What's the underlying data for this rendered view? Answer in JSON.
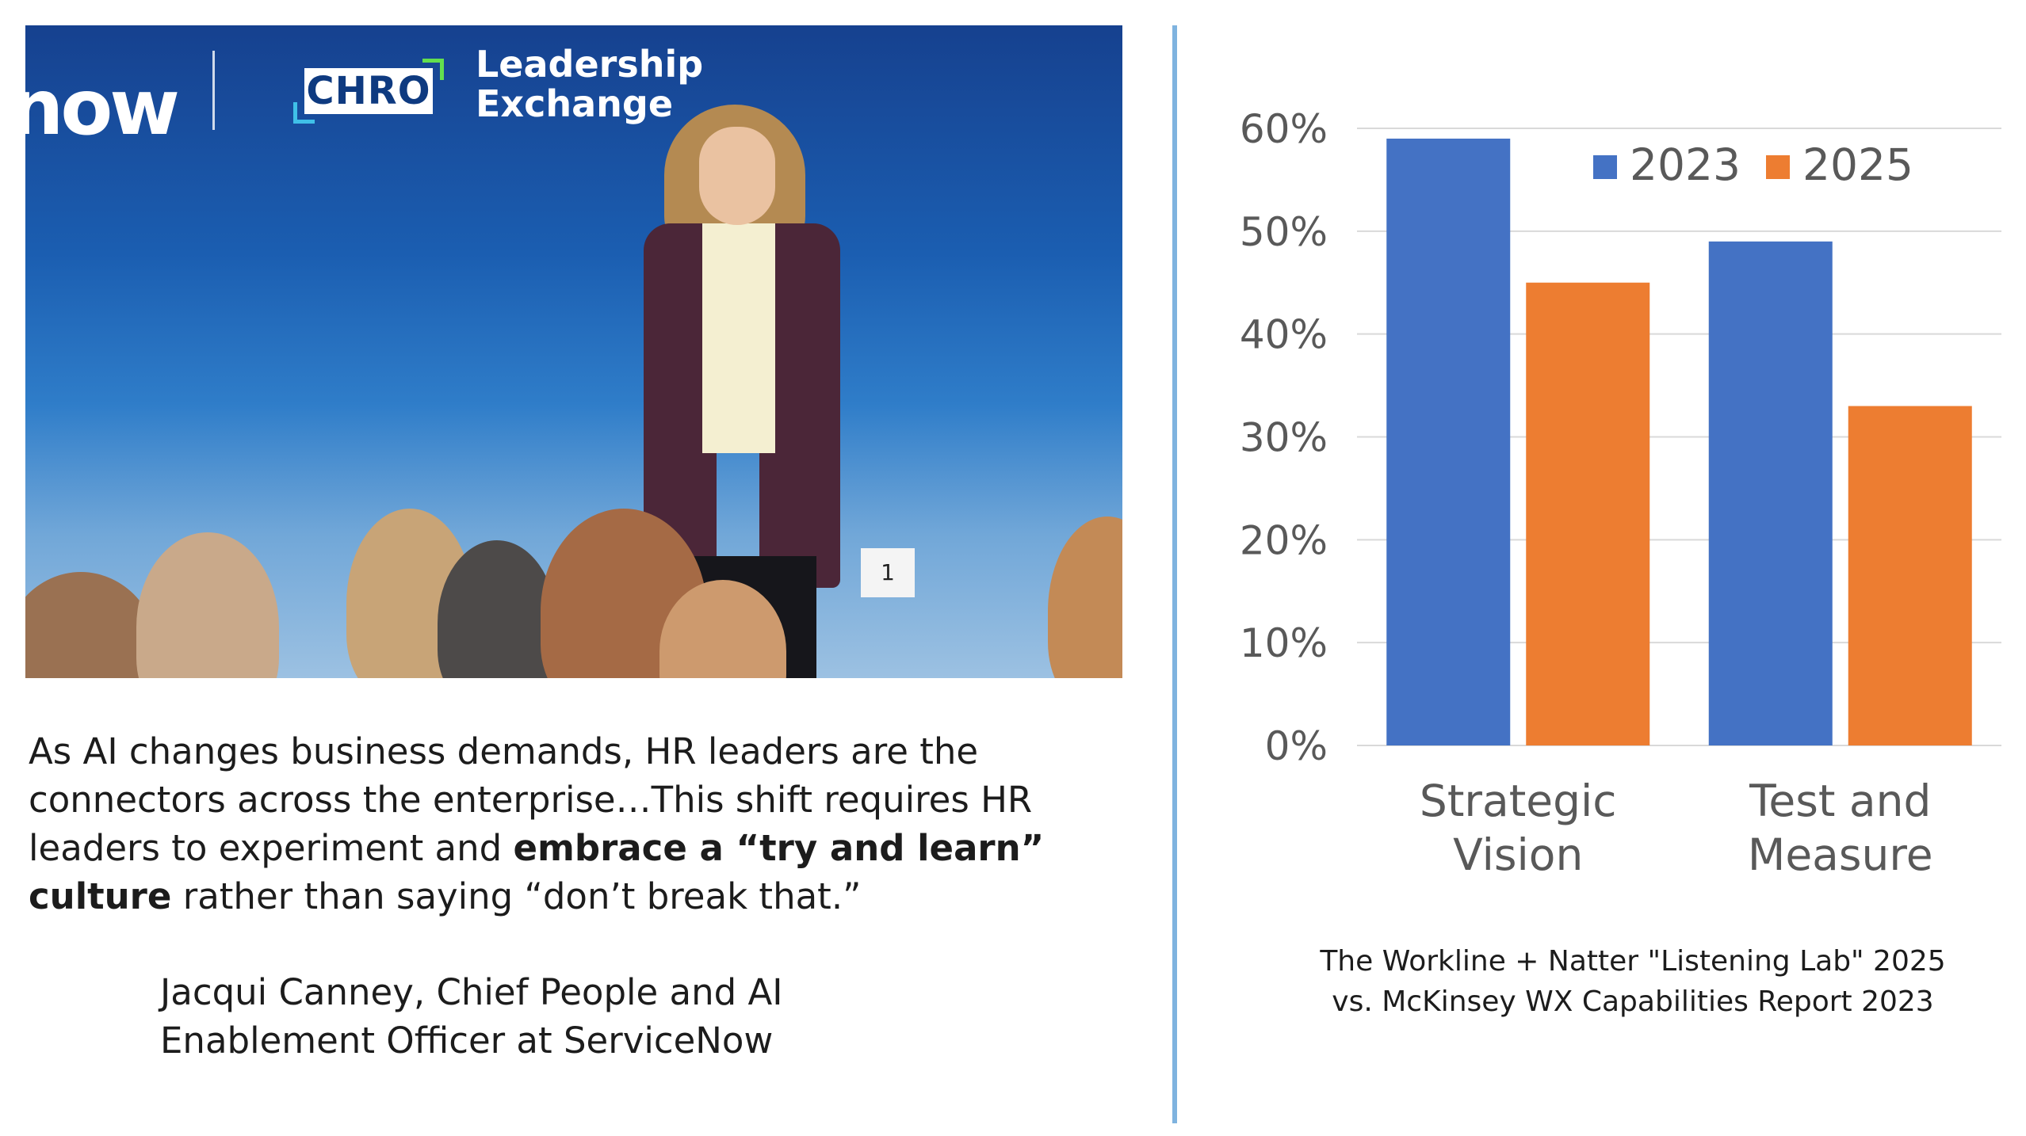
{
  "photo": {
    "logo_text": "now",
    "event_badge": "CHRO",
    "event_name_line1": "Leadership",
    "event_name_line2": "Exchange",
    "table_number": "1"
  },
  "quote": {
    "part1": "As AI changes business demands, HR leaders are the connectors across the enterprise…This shift requires HR leaders to experiment and ",
    "bold1": "embrace a “try and learn” culture",
    "part2": " rather than saying “don’t break that.”"
  },
  "attribution": {
    "line1": "Jacqui Canney, Chief People and AI",
    "line2": "Enablement Officer at ServiceNow"
  },
  "chart_data": {
    "type": "bar",
    "categories": [
      {
        "line1": "Strategic",
        "line2": "Vision"
      },
      {
        "line1": "Test and",
        "line2": "Measure"
      }
    ],
    "series": [
      {
        "name": "2023",
        "color": "#4472c4",
        "values": [
          59,
          49
        ]
      },
      {
        "name": "2025",
        "color": "#ed7d31",
        "values": [
          45,
          33
        ]
      }
    ],
    "ylim": [
      0,
      60
    ],
    "yticks": [
      "0%",
      "10%",
      "20%",
      "30%",
      "40%",
      "50%",
      "60%"
    ],
    "grid": true,
    "legend_position": "top-right",
    "caption_line1": "The Workline + Natter \"Listening Lab\" 2025",
    "caption_line2": "vs. McKinsey WX Capabilities Report 2023"
  },
  "colors": {
    "divider": "#7fb3df",
    "text": "#1c1c1c",
    "axis_text": "#595959"
  }
}
